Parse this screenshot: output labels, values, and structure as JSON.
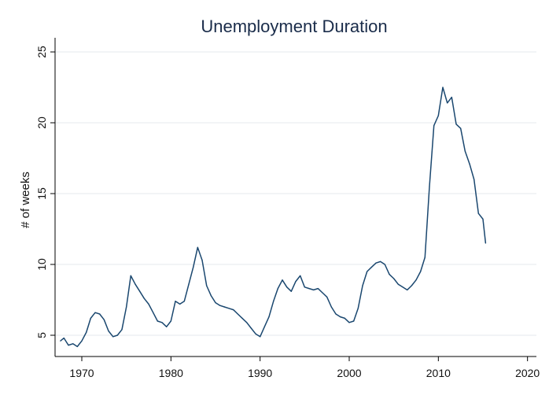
{
  "chart_data": {
    "type": "line",
    "title": "Unemployment Duration",
    "xlabel": "",
    "ylabel": "# of weeks",
    "xlim": [
      1967,
      2021
    ],
    "ylim": [
      3.5,
      26
    ],
    "xticks": [
      1970,
      1980,
      1990,
      2000,
      2010,
      2020
    ],
    "yticks": [
      5,
      10,
      15,
      20,
      25
    ],
    "grid": true,
    "line_color": "#1a476f",
    "series": [
      {
        "x": [
          1967.6,
          1968.0,
          1968.5,
          1969.0,
          1969.5,
          1970.0,
          1970.5,
          1971.0,
          1971.5,
          1972.0,
          1972.5,
          1973.0,
          1973.5,
          1974.0,
          1974.5,
          1975.0,
          1975.5,
          1976.0,
          1976.5,
          1977.0,
          1977.5,
          1978.0,
          1978.5,
          1979.0,
          1979.5,
          1980.0,
          1980.5,
          1981.0,
          1981.5,
          1982.0,
          1982.5,
          1983.0,
          1983.5,
          1984.0,
          1984.5,
          1985.0,
          1985.5,
          1986.0,
          1986.5,
          1987.0,
          1987.5,
          1988.0,
          1988.5,
          1989.0,
          1989.5,
          1990.0,
          1990.5,
          1991.0,
          1991.5,
          1992.0,
          1992.5,
          1993.0,
          1993.5,
          1994.0,
          1994.5,
          1995.0,
          1995.5,
          1996.0,
          1996.5,
          1997.0,
          1997.5,
          1998.0,
          1998.5,
          1999.0,
          1999.5,
          2000.0,
          2000.5,
          2001.0,
          2001.5,
          2002.0,
          2002.5,
          2003.0,
          2003.5,
          2004.0,
          2004.5,
          2005.0,
          2005.5,
          2006.0,
          2006.5,
          2007.0,
          2007.5,
          2008.0,
          2008.5,
          2009.0,
          2009.5,
          2010.0,
          2010.5,
          2011.0,
          2011.5,
          2012.0,
          2012.5,
          2013.0,
          2013.5,
          2014.0,
          2014.5,
          2015.0,
          2015.3
        ],
        "y": [
          4.6,
          4.8,
          4.3,
          4.4,
          4.2,
          4.6,
          5.2,
          6.2,
          6.6,
          6.5,
          6.1,
          5.3,
          4.9,
          5.0,
          5.4,
          7.0,
          9.2,
          8.6,
          8.1,
          7.6,
          7.2,
          6.6,
          6.0,
          5.9,
          5.6,
          6.0,
          7.4,
          7.2,
          7.4,
          8.6,
          9.8,
          11.2,
          10.3,
          8.5,
          7.8,
          7.3,
          7.1,
          7.0,
          6.9,
          6.8,
          6.5,
          6.2,
          5.9,
          5.5,
          5.1,
          4.9,
          5.6,
          6.3,
          7.4,
          8.3,
          8.9,
          8.4,
          8.1,
          8.8,
          9.2,
          8.4,
          8.3,
          8.2,
          8.3,
          8.0,
          7.7,
          7.0,
          6.5,
          6.3,
          6.2,
          5.9,
          6.0,
          6.9,
          8.5,
          9.5,
          9.8,
          10.1,
          10.2,
          10.0,
          9.3,
          9.0,
          8.6,
          8.4,
          8.2,
          8.5,
          8.9,
          9.5,
          10.5,
          15.5,
          19.8,
          20.5,
          22.5,
          21.4,
          21.8,
          19.9,
          19.6,
          18.0,
          17.1,
          16.0,
          13.6,
          13.2,
          11.5
        ]
      }
    ]
  }
}
